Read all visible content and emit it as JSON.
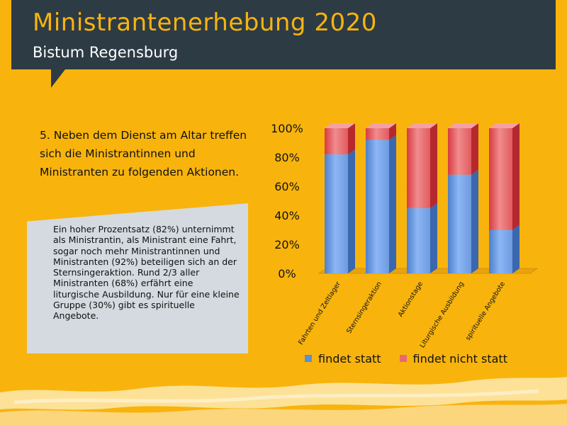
{
  "header": {
    "title": "Ministrantenerhebung 2020",
    "subtitle": "Bistum Regensburg"
  },
  "question": "5. Neben dem Dienst am Altar treffen sich die Ministrantinnen und Ministranten zu folgenden Aktionen.",
  "callout": "Ein hoher Prozentsatz (82%) unternimmt als Ministrantin, als Ministrant eine Fahrt, sogar noch mehr Ministrantinnen und Ministranten (92%) beteiligen sich an der Sternsingeraktion. Rund 2/3 aller Ministranten (68%) erfährt eine liturgische Ausbildung. Nur für eine kleine Gruppe (30%) gibt es spirituelle Angebote.",
  "colors": {
    "background": "#F8B40D",
    "header": "#2D3B45",
    "findet_statt": "#5B8FD6",
    "findet_nicht_statt": "#E0464C"
  },
  "chart_data": {
    "type": "bar",
    "stacked": true,
    "percent": true,
    "categories": [
      "Fahrten und Zeltlager",
      "Sternsingeraktion",
      "Aktionstage",
      "Liturgische Ausbildung",
      "spirituelle Angebote"
    ],
    "series": [
      {
        "name": "findet statt",
        "values": [
          82,
          92,
          45,
          68,
          30
        ]
      },
      {
        "name": "findet nicht statt",
        "values": [
          18,
          8,
          55,
          32,
          70
        ]
      }
    ],
    "yticks": [
      "0%",
      "20%",
      "40%",
      "60%",
      "80%",
      "100%"
    ],
    "ylim": [
      0,
      100
    ],
    "legend": "bottom",
    "grid": false
  }
}
